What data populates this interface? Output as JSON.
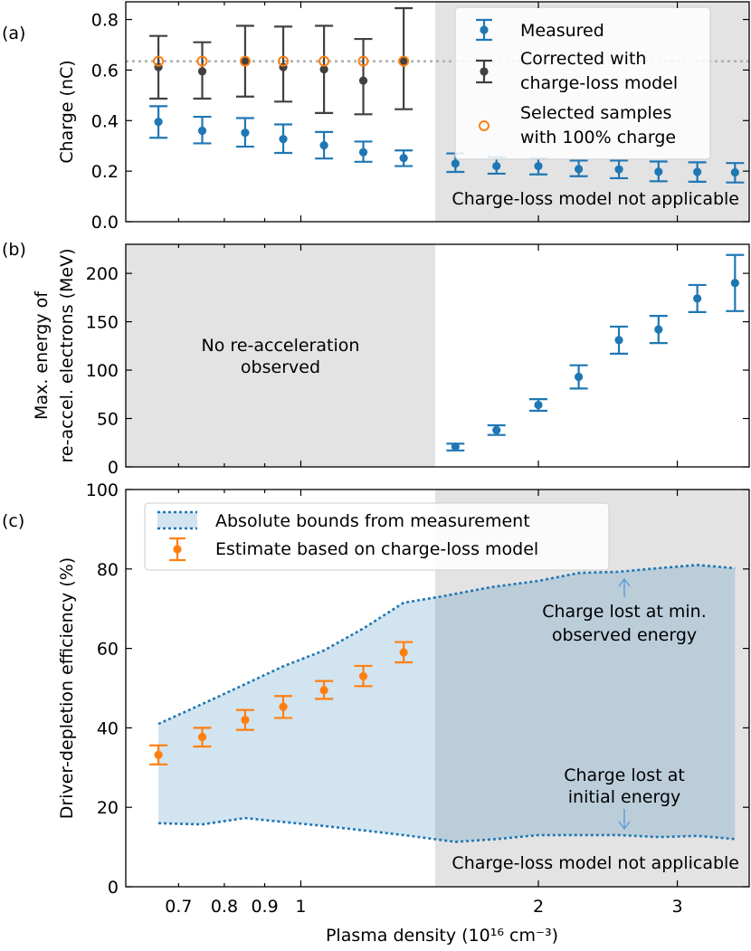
{
  "colors": {
    "measured": "#1f77b4",
    "corrected": "#404040",
    "selected": "#ff7f0e",
    "estimate": "#ff7f0e",
    "bounds_line": "#1f77b4",
    "bounds_fill": "#1f77b4",
    "shade": "#e3e3e3",
    "gray_text": "#8c8c8c",
    "blue_text": "#5b9bd5",
    "ref_line": "#aaaaaa"
  },
  "chart_data": [
    {
      "id": "a",
      "type": "scatter",
      "panel_label": "(a)",
      "ylabel": "Charge (nC)",
      "x_scale": "log",
      "xlim": [
        0.6,
        3.7
      ],
      "ylim": [
        0,
        0.87
      ],
      "yticks": [
        "0.0",
        "0.2",
        "0.4",
        "0.6",
        "0.8"
      ],
      "shaded_x_from": 1.48,
      "reference_line_y": 0.635,
      "annotation": "Charge-loss model not applicable",
      "legend": {
        "position": "top-right",
        "entries": [
          "Measured",
          "Corrected with charge-loss model",
          "Selected samples with 100% charge"
        ],
        "lines": [
          [
            "Measured"
          ],
          [
            "Corrected with",
            "charge-loss model"
          ],
          [
            "Selected samples",
            "with 100% charge"
          ]
        ]
      },
      "series": [
        {
          "name": "Measured",
          "x": [
            0.66,
            0.75,
            0.85,
            0.95,
            1.07,
            1.2,
            1.35,
            1.57,
            1.77,
            2.0,
            2.25,
            2.53,
            2.84,
            3.18,
            3.55
          ],
          "y": [
            0.395,
            0.36,
            0.352,
            0.327,
            0.302,
            0.275,
            0.252,
            0.23,
            0.22,
            0.22,
            0.208,
            0.207,
            0.198,
            0.197,
            0.195
          ],
          "err_low": [
            0.332,
            0.31,
            0.297,
            0.272,
            0.25,
            0.237,
            0.22,
            0.197,
            0.19,
            0.187,
            0.18,
            0.172,
            0.16,
            0.158,
            0.155
          ],
          "err_high": [
            0.457,
            0.415,
            0.41,
            0.385,
            0.355,
            0.317,
            0.282,
            0.27,
            0.255,
            0.25,
            0.242,
            0.242,
            0.238,
            0.235,
            0.232
          ]
        },
        {
          "name": "Corrected with charge-loss model",
          "x": [
            0.66,
            0.75,
            0.85,
            0.95,
            1.07,
            1.2,
            1.35
          ],
          "y": [
            0.612,
            0.595,
            0.635,
            0.612,
            0.603,
            0.558,
            0.637
          ],
          "err_low": [
            0.487,
            0.487,
            0.495,
            0.475,
            0.43,
            0.425,
            0.445
          ],
          "err_high": [
            0.735,
            0.71,
            0.775,
            0.772,
            0.775,
            0.723,
            0.845
          ]
        },
        {
          "name": "Selected samples with 100% charge",
          "x": [
            0.66,
            0.75,
            0.85,
            0.95,
            1.07,
            1.2,
            1.35
          ],
          "y": [
            0.635,
            0.635,
            0.635,
            0.635,
            0.635,
            0.635,
            0.635
          ]
        }
      ]
    },
    {
      "id": "b",
      "type": "scatter",
      "panel_label": "(b)",
      "ylabel_lines": [
        "Max. energy of",
        "re-accel. electrons (MeV)"
      ],
      "x_scale": "log",
      "xlim": [
        0.6,
        3.7
      ],
      "ylim": [
        0,
        230
      ],
      "yticks": [
        "0",
        "50",
        "100",
        "150",
        "200"
      ],
      "shaded_x_to": 1.48,
      "annotation_lines": [
        "No re-acceleration",
        "observed"
      ],
      "series": [
        {
          "name": "",
          "x": [
            1.57,
            1.77,
            2.0,
            2.25,
            2.53,
            2.84,
            3.18,
            3.55
          ],
          "y": [
            21,
            38,
            64,
            93,
            131,
            142,
            174,
            190
          ],
          "err_low": [
            17,
            33,
            58,
            81,
            117,
            128,
            160,
            161
          ],
          "err_high": [
            24,
            43,
            70,
            105,
            145,
            156,
            188,
            219
          ]
        }
      ]
    },
    {
      "id": "c",
      "type": "area",
      "panel_label": "(c)",
      "ylabel": "Driver-depletion efficiency (%)",
      "xlabel": "Plasma density (10¹⁶ cm⁻³)",
      "x_scale": "log",
      "xlim": [
        0.6,
        3.7
      ],
      "ylim": [
        0,
        100
      ],
      "yticks": [
        "0",
        "20",
        "40",
        "60",
        "80",
        "100"
      ],
      "xticks": [
        {
          "v": 0.7,
          "label": "0.7"
        },
        {
          "v": 0.8,
          "label": "0.8"
        },
        {
          "v": 0.9,
          "label": "0.9"
        },
        {
          "v": 1,
          "label": "1"
        },
        {
          "v": 2,
          "label": "2"
        },
        {
          "v": 3,
          "label": "3"
        }
      ],
      "shaded_x_from": 1.48,
      "annotation": "Charge-loss model not applicable",
      "callouts": [
        {
          "lines": [
            "Charge lost at min.",
            "observed energy"
          ],
          "arrow": "up"
        },
        {
          "lines": [
            "Charge lost at",
            "initial energy"
          ],
          "arrow": "down"
        }
      ],
      "legend": {
        "position": "top-left",
        "entries": [
          "Absolute bounds from measurement",
          "Estimate based on charge-loss model"
        ]
      },
      "bounds": {
        "name": "Absolute bounds from measurement",
        "upper": {
          "x": [
            0.66,
            0.75,
            0.85,
            0.95,
            1.07,
            1.2,
            1.35,
            1.5,
            1.75,
            2.0,
            2.25,
            2.53,
            2.84,
            3.18,
            3.55
          ],
          "y": [
            41,
            46,
            51,
            55.5,
            59.5,
            65,
            71.5,
            73,
            75.5,
            77,
            79,
            79.3,
            80.2,
            81,
            80.2
          ]
        },
        "lower": {
          "x": [
            0.66,
            0.75,
            0.85,
            0.95,
            1.07,
            1.2,
            1.35,
            1.57,
            1.77,
            2.0,
            2.25,
            2.53,
            2.84,
            3.18,
            3.55
          ],
          "y": [
            16,
            15.7,
            17.3,
            16.3,
            15.3,
            14.2,
            13,
            11.3,
            12,
            13,
            13,
            13,
            12.5,
            12.8,
            12
          ]
        }
      },
      "series": [
        {
          "name": "Estimate based on charge-loss model",
          "x": [
            0.66,
            0.75,
            0.85,
            0.95,
            1.07,
            1.2,
            1.35
          ],
          "y": [
            33.2,
            37.7,
            42,
            45.3,
            49.5,
            53,
            59
          ],
          "err_low": [
            30.8,
            35.3,
            39.5,
            42.5,
            47.3,
            50.5,
            56.5
          ],
          "err_high": [
            35.6,
            40,
            44.5,
            48,
            51.8,
            55.6,
            61.6
          ]
        }
      ]
    }
  ]
}
